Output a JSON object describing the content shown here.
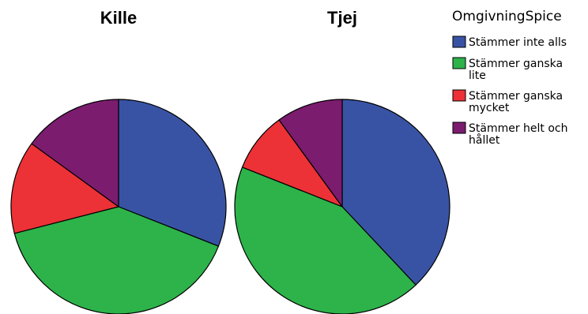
{
  "chart_data": [
    {
      "type": "pie",
      "title": "Kille",
      "categories": [
        "Stämmer inte alls",
        "Stämmer ganska lite",
        "Stämmer ganska mycket",
        "Stämmer helt och hållet"
      ],
      "values": [
        31,
        40,
        14,
        15
      ],
      "colors": [
        "#3953a4",
        "#2db34a",
        "#ed3237",
        "#7b1c6f"
      ]
    },
    {
      "type": "pie",
      "title": "Tjej",
      "categories": [
        "Stämmer inte alls",
        "Stämmer ganska lite",
        "Stämmer ganska mycket",
        "Stämmer helt och hållet"
      ],
      "values": [
        38,
        43,
        9,
        10
      ],
      "colors": [
        "#3953a4",
        "#2db34a",
        "#ed3237",
        "#7b1c6f"
      ]
    }
  ],
  "legend": {
    "title": "OmgivningSpice",
    "placement": "top-right",
    "items": [
      {
        "lines": [
          "Stämmer inte alls"
        ],
        "color": "#3953a4",
        "icon": "blue-swatch"
      },
      {
        "lines": [
          "Stämmer ganska",
          "lite"
        ],
        "color": "#2db34a",
        "icon": "green-swatch"
      },
      {
        "lines": [
          "Stämmer ganska",
          "mycket"
        ],
        "color": "#ed3237",
        "icon": "red-swatch"
      },
      {
        "lines": [
          "Stämmer helt och",
          "hållet"
        ],
        "color": "#7b1c6f",
        "icon": "purple-swatch"
      }
    ]
  }
}
